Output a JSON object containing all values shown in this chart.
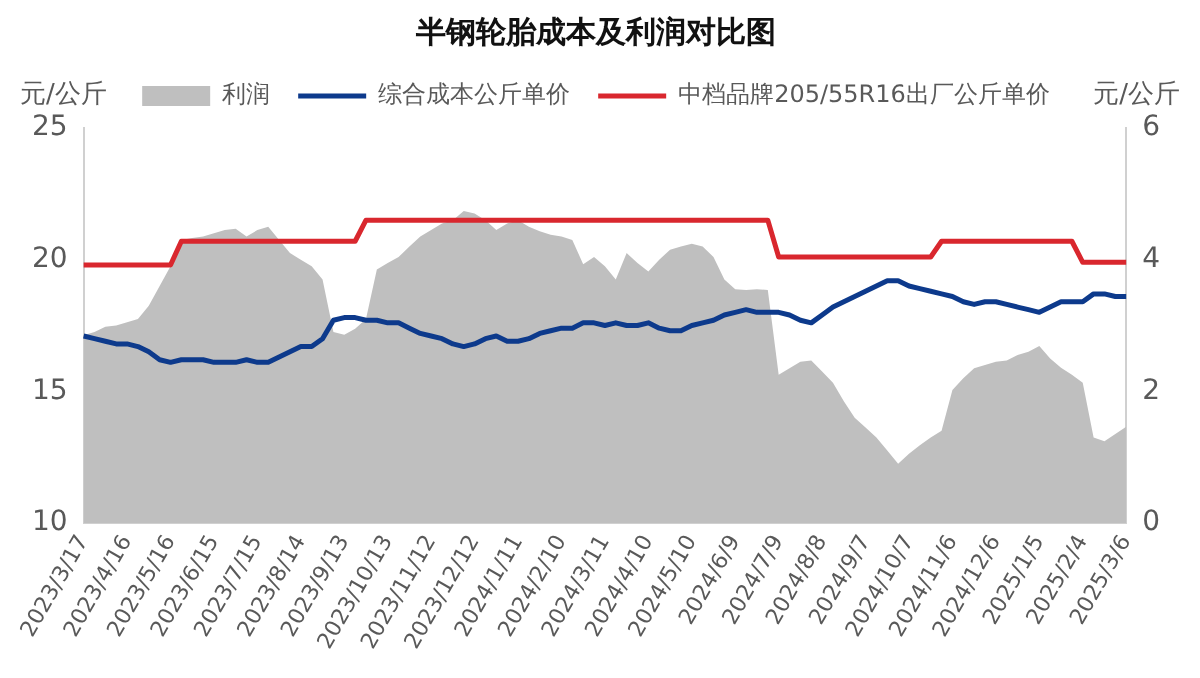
{
  "chart_data": {
    "type": "line",
    "title": "半钢轮胎成本及利润对比图",
    "ylabel": "元/公斤",
    "y2label": "元/公斤",
    "legend": "top",
    "marker": "none",
    "line_style": "solid",
    "categories": [
      "2023/3/17",
      null,
      null,
      null,
      "2023/4/16",
      null,
      null,
      null,
      "2023/5/16",
      null,
      null,
      null,
      "2023/6/15",
      null,
      null,
      null,
      "2023/7/15",
      null,
      null,
      null,
      "2023/8/14",
      null,
      null,
      null,
      "2023/9/13",
      null,
      null,
      null,
      "2023/10/13",
      null,
      null,
      null,
      "2023/11/12",
      null,
      null,
      null,
      "2023/12/12",
      null,
      null,
      null,
      "2024/1/11",
      null,
      null,
      null,
      "2024/2/10",
      null,
      null,
      null,
      "2024/3/11",
      null,
      null,
      null,
      "2024/4/10",
      null,
      null,
      null,
      "2024/5/10",
      null,
      null,
      null,
      "2024/6/9",
      null,
      null,
      null,
      "2024/7/9",
      null,
      null,
      null,
      "2024/8/8",
      null,
      null,
      null,
      "2024/9/7",
      null,
      null,
      null,
      "2024/10/7",
      null,
      null,
      null,
      "2024/11/6",
      null,
      null,
      null,
      "2024/12/6",
      null,
      null,
      null,
      "2025/1/5",
      null,
      null,
      null,
      "2025/2/4",
      null,
      null,
      null,
      "2025/3/6"
    ],
    "series": [
      {
        "name": "利润",
        "type": "area",
        "axis": "y2",
        "color": "#bfbfbf",
        "values": [
          2.85,
          2.9,
          2.98,
          3.0,
          3.05,
          3.1,
          3.3,
          3.6,
          3.9,
          4.3,
          4.33,
          4.35,
          4.4,
          4.45,
          4.47,
          4.35,
          4.45,
          4.5,
          4.3,
          4.1,
          4.0,
          3.9,
          3.7,
          2.9,
          2.86,
          2.95,
          3.1,
          3.85,
          3.95,
          4.04,
          4.2,
          4.35,
          4.45,
          4.55,
          4.6,
          4.74,
          4.7,
          4.6,
          4.45,
          4.55,
          4.6,
          4.5,
          4.43,
          4.38,
          4.35,
          4.3,
          3.93,
          4.04,
          3.9,
          3.7,
          4.1,
          3.95,
          3.82,
          4.0,
          4.15,
          4.2,
          4.24,
          4.2,
          4.04,
          3.7,
          3.55,
          3.54,
          3.55,
          3.54,
          2.25,
          2.35,
          2.45,
          2.47,
          2.3,
          2.13,
          1.85,
          1.6,
          1.45,
          1.3,
          1.1,
          0.9,
          1.05,
          1.18,
          1.3,
          1.4,
          2.02,
          2.2,
          2.35,
          2.4,
          2.45,
          2.47,
          2.55,
          2.6,
          2.69,
          2.5,
          2.36,
          2.25,
          2.13,
          1.3,
          1.24,
          1.35,
          1.46
        ]
      },
      {
        "name": "综合成本公斤单价",
        "type": "line",
        "color": "#0d3a8c",
        "values": [
          17.1,
          17.0,
          16.9,
          16.8,
          16.8,
          16.7,
          16.5,
          16.2,
          16.1,
          16.2,
          16.2,
          16.2,
          16.1,
          16.1,
          16.1,
          16.2,
          16.1,
          16.1,
          16.3,
          16.5,
          16.7,
          16.7,
          17.0,
          17.7,
          17.8,
          17.8,
          17.7,
          17.7,
          17.6,
          17.6,
          17.4,
          17.2,
          17.1,
          17.0,
          16.8,
          16.7,
          16.8,
          17.0,
          17.1,
          16.9,
          16.9,
          17.0,
          17.2,
          17.3,
          17.4,
          17.4,
          17.6,
          17.6,
          17.5,
          17.6,
          17.5,
          17.5,
          17.6,
          17.4,
          17.3,
          17.3,
          17.5,
          17.6,
          17.7,
          17.9,
          18.0,
          18.1,
          18.0,
          18.0,
          18.0,
          17.9,
          17.7,
          17.6,
          17.9,
          18.2,
          18.4,
          18.6,
          18.8,
          19.0,
          19.2,
          19.2,
          19.0,
          18.9,
          18.8,
          18.7,
          18.6,
          18.4,
          18.3,
          18.4,
          18.4,
          18.3,
          18.2,
          18.1,
          18.0,
          18.2,
          18.4,
          18.4,
          18.4,
          18.7,
          18.7,
          18.6,
          18.6
        ]
      },
      {
        "name": "中档品牌205/55R16出厂公斤单价",
        "type": "line",
        "color": "#d9272e",
        "values": [
          19.8,
          19.8,
          19.8,
          19.8,
          19.8,
          19.8,
          19.8,
          19.8,
          19.8,
          20.7,
          20.7,
          20.7,
          20.7,
          20.7,
          20.7,
          20.7,
          20.7,
          20.7,
          20.7,
          20.7,
          20.7,
          20.7,
          20.7,
          20.7,
          20.7,
          20.7,
          21.5,
          21.5,
          21.5,
          21.5,
          21.5,
          21.5,
          21.5,
          21.5,
          21.5,
          21.5,
          21.5,
          21.5,
          21.5,
          21.5,
          21.5,
          21.5,
          21.5,
          21.5,
          21.5,
          21.5,
          21.5,
          21.5,
          21.5,
          21.5,
          21.5,
          21.5,
          21.5,
          21.5,
          21.5,
          21.5,
          21.5,
          21.5,
          21.5,
          21.5,
          21.5,
          21.5,
          21.5,
          21.5,
          20.1,
          20.1,
          20.1,
          20.1,
          20.1,
          20.1,
          20.1,
          20.1,
          20.1,
          20.1,
          20.1,
          20.1,
          20.1,
          20.1,
          20.1,
          20.7,
          20.7,
          20.7,
          20.7,
          20.7,
          20.7,
          20.7,
          20.7,
          20.7,
          20.7,
          20.7,
          20.7,
          20.7,
          19.9,
          19.9,
          19.9,
          19.9,
          19.9
        ]
      }
    ],
    "ylim": [
      10,
      25
    ],
    "yticks": [
      10,
      15,
      20,
      25
    ],
    "y2lim": [
      0,
      6
    ],
    "y2ticks": [
      0,
      2,
      4,
      6
    ]
  }
}
